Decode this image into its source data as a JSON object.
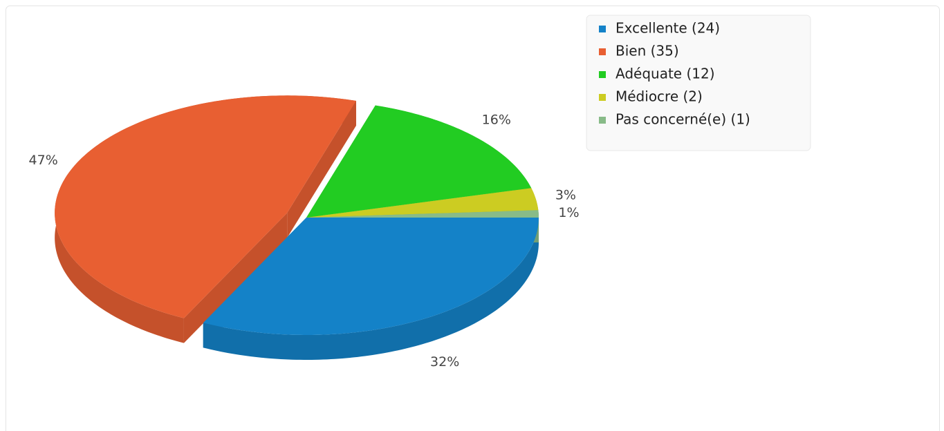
{
  "chart_data": {
    "type": "pie3d",
    "categories": [
      "Excellente (24)",
      "Bien (35)",
      "Adéquate (12)",
      "Médiocre (2)",
      "Pas concerné(e) (1)"
    ],
    "values": [
      32,
      47,
      16,
      3,
      1
    ],
    "value_labels": [
      "32%",
      "47%",
      "16%",
      "3%",
      "1%"
    ],
    "colors": [
      "#1482c8",
      "#e85f32",
      "#22cc22",
      "#cccc22",
      "#88bb88"
    ],
    "legend": "top-right"
  }
}
